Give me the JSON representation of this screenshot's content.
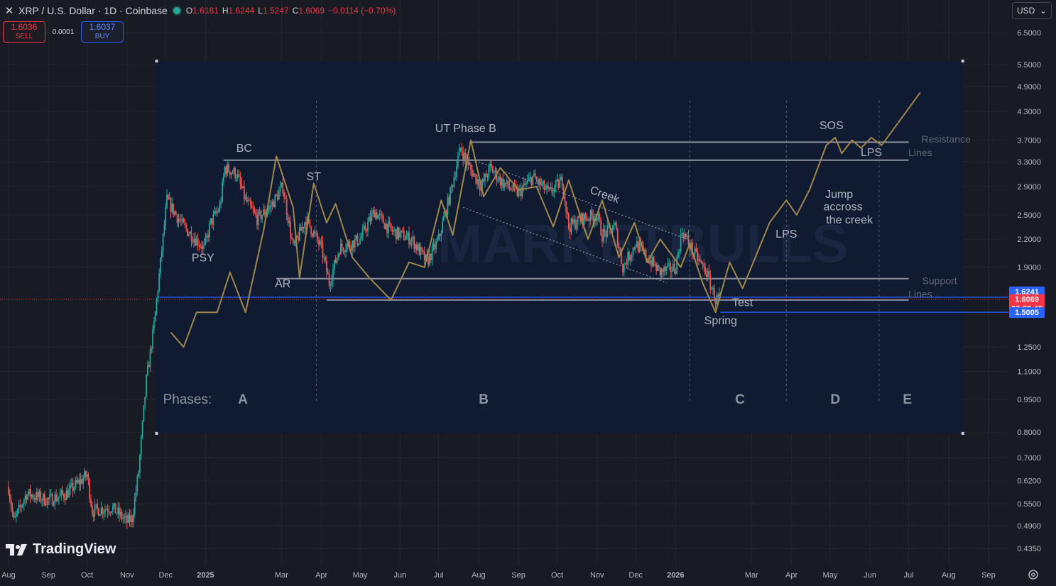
{
  "header": {
    "title": "XRP / U.S. Dollar · 1D · Coinbase",
    "ohlc": [
      {
        "key": "O",
        "value": "1.6181"
      },
      {
        "key": "H",
        "value": "1.6244"
      },
      {
        "key": "L",
        "value": "1.5247"
      },
      {
        "key": "C",
        "value": "1.6069"
      }
    ],
    "change": "−0.0114 (−0.70%)"
  },
  "trade": {
    "sell_price": "1.6036",
    "sell_label": "SELL",
    "spread": "0.0001",
    "buy_price": "1.6037",
    "buy_label": "BUY"
  },
  "currency": "USD",
  "brand": "TradingView",
  "colors": {
    "up": "#26a69a",
    "down": "#ef5350",
    "accent": "#2962ff",
    "schematic": "#a0864a",
    "overlay": "#0f1a33"
  },
  "chart_data": {
    "type": "candlestick",
    "ylabel_scale": "log",
    "ylim": [
      0.42,
      7.0
    ],
    "xlim": [
      "2024-08-01",
      "2026-09-30"
    ],
    "y_ticks": [
      "6.5000",
      "5.5000",
      "4.9000",
      "4.3000",
      "3.7000",
      "3.3000",
      "2.9000",
      "2.5000",
      "2.2000",
      "1.9000",
      "1.2500",
      "1.1000",
      "0.9500",
      "0.8000",
      "0.7000",
      "0.6200",
      "0.5500",
      "0.4900",
      "0.4350"
    ],
    "x_ticks": [
      {
        "label": "Aug",
        "date": "2024-08-01"
      },
      {
        "label": "Sep",
        "date": "2024-09-01"
      },
      {
        "label": "Oct",
        "date": "2024-10-01"
      },
      {
        "label": "Nov",
        "date": "2024-11-01"
      },
      {
        "label": "Dec",
        "date": "2024-12-01"
      },
      {
        "label": "2025",
        "date": "2025-01-01",
        "bold": true
      },
      {
        "label": "Mar",
        "date": "2025-03-01"
      },
      {
        "label": "Apr",
        "date": "2025-04-01"
      },
      {
        "label": "May",
        "date": "2025-05-01"
      },
      {
        "label": "Jun",
        "date": "2025-06-01"
      },
      {
        "label": "Jul",
        "date": "2025-07-01"
      },
      {
        "label": "Aug",
        "date": "2025-08-01"
      },
      {
        "label": "Sep",
        "date": "2025-09-01"
      },
      {
        "label": "Oct",
        "date": "2025-10-01"
      },
      {
        "label": "Nov",
        "date": "2025-11-01"
      },
      {
        "label": "Dec",
        "date": "2025-12-01"
      },
      {
        "label": "2026",
        "date": "2026-01-01",
        "bold": true
      },
      {
        "label": "Mar",
        "date": "2026-03-01"
      },
      {
        "label": "Apr",
        "date": "2026-04-01"
      },
      {
        "label": "May",
        "date": "2026-05-01"
      },
      {
        "label": "Jun",
        "date": "2026-06-01"
      },
      {
        "label": "Jul",
        "date": "2026-07-01"
      },
      {
        "label": "Aug",
        "date": "2026-08-01"
      },
      {
        "label": "Sep",
        "date": "2026-09-01"
      }
    ],
    "price_path": [
      [
        "2024-08-01",
        0.6
      ],
      [
        "2024-08-05",
        0.5
      ],
      [
        "2024-08-15",
        0.58
      ],
      [
        "2024-09-01",
        0.56
      ],
      [
        "2024-09-15",
        0.58
      ],
      [
        "2024-10-01",
        0.64
      ],
      [
        "2024-10-05",
        0.53
      ],
      [
        "2024-10-20",
        0.54
      ],
      [
        "2024-11-01",
        0.5
      ],
      [
        "2024-11-05",
        0.51
      ],
      [
        "2024-11-10",
        0.65
      ],
      [
        "2024-11-16",
        1.05
      ],
      [
        "2024-11-22",
        1.4
      ],
      [
        "2024-12-02",
        2.7
      ],
      [
        "2024-12-15",
        2.35
      ],
      [
        "2024-12-31",
        2.1
      ],
      [
        "2025-01-05",
        2.4
      ],
      [
        "2025-01-12",
        2.6
      ],
      [
        "2025-01-16",
        3.2
      ],
      [
        "2025-01-25",
        3.1
      ],
      [
        "2025-02-01",
        2.7
      ],
      [
        "2025-02-10",
        2.45
      ],
      [
        "2025-02-20",
        2.6
      ],
      [
        "2025-03-02",
        2.9
      ],
      [
        "2025-03-10",
        2.1
      ],
      [
        "2025-03-20",
        2.45
      ],
      [
        "2025-04-01",
        2.1
      ],
      [
        "2025-04-07",
        1.75
      ],
      [
        "2025-04-15",
        2.1
      ],
      [
        "2025-05-01",
        2.2
      ],
      [
        "2025-05-12",
        2.55
      ],
      [
        "2025-05-25",
        2.3
      ],
      [
        "2025-06-10",
        2.2
      ],
      [
        "2025-06-22",
        1.95
      ],
      [
        "2025-07-01",
        2.2
      ],
      [
        "2025-07-10",
        2.8
      ],
      [
        "2025-07-18",
        3.55
      ],
      [
        "2025-07-25",
        3.2
      ],
      [
        "2025-08-03",
        2.9
      ],
      [
        "2025-08-10",
        3.2
      ],
      [
        "2025-08-20",
        2.95
      ],
      [
        "2025-09-01",
        2.8
      ],
      [
        "2025-09-12",
        3.05
      ],
      [
        "2025-09-25",
        2.8
      ],
      [
        "2025-10-05",
        3.0
      ],
      [
        "2025-10-10",
        2.35
      ],
      [
        "2025-10-20",
        2.45
      ],
      [
        "2025-11-01",
        2.5
      ],
      [
        "2025-11-05",
        2.25
      ],
      [
        "2025-11-15",
        2.35
      ],
      [
        "2025-11-21",
        1.9
      ],
      [
        "2025-12-01",
        2.15
      ],
      [
        "2025-12-10",
        2.0
      ],
      [
        "2025-12-20",
        1.85
      ],
      [
        "2026-01-01",
        1.9
      ],
      [
        "2026-01-06",
        2.3
      ],
      [
        "2026-01-15",
        2.05
      ],
      [
        "2026-01-25",
        1.85
      ],
      [
        "2026-02-01",
        1.6
      ],
      [
        "2026-02-05",
        1.62
      ]
    ],
    "schematic": [
      [
        "2024-12-05",
        1.35
      ],
      [
        "2024-12-15",
        1.25
      ],
      [
        "2024-12-25",
        1.5
      ],
      [
        "2025-01-10",
        1.5
      ],
      [
        "2025-01-20",
        1.85
      ],
      [
        "2025-02-01",
        1.5
      ],
      [
        "2025-02-15",
        2.3
      ],
      [
        "2025-02-25",
        3.4
      ],
      [
        "2025-03-10",
        2.6
      ],
      [
        "2025-03-15",
        1.8
      ],
      [
        "2025-03-26",
        2.95
      ],
      [
        "2025-04-05",
        2.4
      ],
      [
        "2025-04-12",
        2.65
      ],
      [
        "2025-04-25",
        2.0
      ],
      [
        "2025-05-08",
        1.8
      ],
      [
        "2025-05-25",
        1.6
      ],
      [
        "2025-06-08",
        1.95
      ],
      [
        "2025-06-20",
        1.9
      ],
      [
        "2025-07-03",
        2.7
      ],
      [
        "2025-07-12",
        2.25
      ],
      [
        "2025-07-26",
        3.7
      ],
      [
        "2025-08-05",
        2.75
      ],
      [
        "2025-08-18",
        3.2
      ],
      [
        "2025-09-01",
        2.85
      ],
      [
        "2025-09-15",
        2.9
      ],
      [
        "2025-09-28",
        2.35
      ],
      [
        "2025-10-10",
        3.0
      ],
      [
        "2025-10-25",
        2.2
      ],
      [
        "2025-11-05",
        2.7
      ],
      [
        "2025-11-18",
        2.0
      ],
      [
        "2025-11-30",
        2.4
      ],
      [
        "2025-12-10",
        1.95
      ],
      [
        "2025-12-20",
        2.2
      ],
      [
        "2026-01-05",
        1.9
      ],
      [
        "2026-01-12",
        2.15
      ],
      [
        "2026-01-22",
        1.75
      ],
      [
        "2026-02-01",
        1.5
      ],
      [
        "2026-02-12",
        1.95
      ],
      [
        "2026-02-22",
        1.7
      ],
      [
        "2026-03-15",
        2.4
      ],
      [
        "2026-03-28",
        2.7
      ],
      [
        "2026-04-05",
        2.5
      ],
      [
        "2026-04-15",
        2.85
      ],
      [
        "2026-04-28",
        3.6
      ],
      [
        "2026-05-05",
        3.75
      ],
      [
        "2026-05-10",
        3.45
      ],
      [
        "2026-05-18",
        3.7
      ],
      [
        "2026-05-25",
        3.55
      ],
      [
        "2026-06-02",
        3.75
      ],
      [
        "2026-06-10",
        3.6
      ],
      [
        "2026-07-10",
        4.75
      ]
    ],
    "creek_channel": {
      "upper": [
        [
          "2025-08-01",
          3.3
        ],
        [
          "2026-01-10",
          2.2
        ]
      ],
      "lower": [
        [
          "2025-07-20",
          2.6
        ],
        [
          "2025-12-25",
          1.75
        ]
      ]
    },
    "horizontal_lines": [
      {
        "name": "resistance-top",
        "from": "2025-07-25",
        "to": "2026-07-01",
        "y": 3.66
      },
      {
        "name": "resistance-bc",
        "from": "2025-01-15",
        "to": "2026-07-01",
        "y": 3.33
      },
      {
        "name": "support-ar",
        "from": "2025-02-25",
        "to": "2026-07-01",
        "y": 1.79
      },
      {
        "name": "support-low",
        "from": "2025-04-05",
        "to": "2026-07-01",
        "y": 1.6
      }
    ],
    "price_lines": [
      {
        "label": "1.6241",
        "y": 1.6241,
        "color": "#2962ff",
        "from": "2024-11-25"
      },
      {
        "label": "1.5005",
        "y": 1.5005,
        "color": "#2962ff",
        "from": "2026-02-05"
      }
    ],
    "last_price": {
      "value": "1.6069",
      "countdown": "03:28:45",
      "y": 1.6069
    },
    "phase_dividers": [
      "2025-03-28",
      "2026-01-12",
      "2026-03-28",
      "2026-06-08"
    ],
    "phases_label": "Phases:",
    "phases": [
      {
        "label": "A",
        "date": "2025-01-30"
      },
      {
        "label": "B",
        "date": "2025-08-05"
      },
      {
        "label": "C",
        "date": "2026-02-20"
      },
      {
        "label": "D",
        "date": "2026-05-05"
      },
      {
        "label": "E",
        "date": "2026-06-30"
      }
    ],
    "annotations": [
      {
        "text": "BC",
        "date": "2025-01-31",
        "y": 3.48
      },
      {
        "text": "PSY",
        "date": "2024-12-30",
        "y": 1.96
      },
      {
        "text": "ST",
        "date": "2025-03-26",
        "y": 3.0
      },
      {
        "text": "AR",
        "date": "2025-03-02",
        "y": 1.71
      },
      {
        "text": "UT Phase B",
        "date": "2025-07-22",
        "y": 3.86
      },
      {
        "text": "Creek",
        "date": "2025-11-06",
        "y": 2.73,
        "rotate": 20
      },
      {
        "text": "Resistance",
        "date": "2026-07-30",
        "y": 3.65,
        "muted": true
      },
      {
        "text": "Lines",
        "date": "2026-07-10",
        "y": 3.4,
        "muted": true
      },
      {
        "text": "LPS",
        "date": "2026-06-02",
        "y": 3.4
      },
      {
        "text": "SOS",
        "date": "2026-05-02",
        "y": 3.92
      },
      {
        "text": "Jump",
        "date": "2026-05-08",
        "y": 2.73
      },
      {
        "text": "accross",
        "date": "2026-05-11",
        "y": 2.56
      },
      {
        "text": "the creek",
        "date": "2026-05-16",
        "y": 2.39
      },
      {
        "text": "LPS",
        "date": "2026-03-28",
        "y": 2.22
      },
      {
        "text": "Support",
        "date": "2026-07-25",
        "y": 1.74,
        "muted": true
      },
      {
        "text": "Lines",
        "date": "2026-07-10",
        "y": 1.62,
        "muted": true
      },
      {
        "text": "Test",
        "date": "2026-02-22",
        "y": 1.55
      },
      {
        "text": "Spring",
        "date": "2026-02-05",
        "y": 1.41
      }
    ]
  }
}
